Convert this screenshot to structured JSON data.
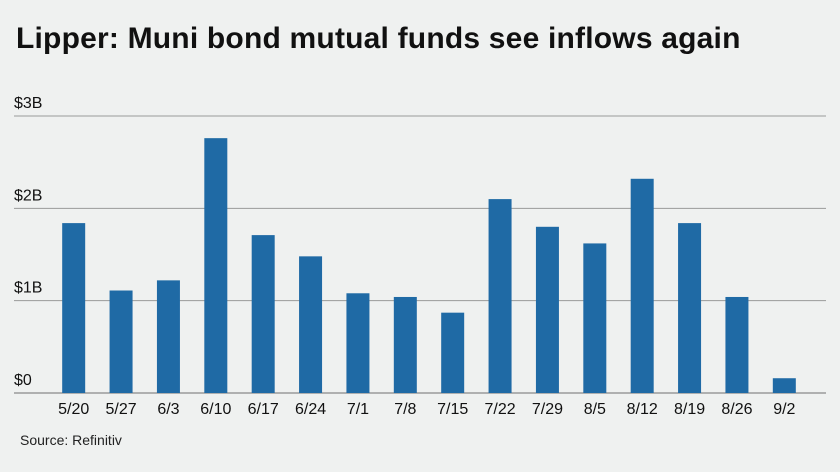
{
  "title": "Lipper: Muni bond mutual funds see inflows again",
  "source": "Source: Refinitiv",
  "chart_data": {
    "type": "bar",
    "title": "Lipper: Muni bond mutual funds see inflows again",
    "xlabel": "",
    "ylabel": "",
    "categories": [
      "5/20",
      "5/27",
      "6/3",
      "6/10",
      "6/17",
      "6/24",
      "7/1",
      "7/8",
      "7/15",
      "7/22",
      "7/29",
      "8/5",
      "8/12",
      "8/19",
      "8/26",
      "9/2"
    ],
    "values": [
      1.84,
      1.11,
      1.22,
      2.76,
      1.71,
      1.48,
      1.08,
      1.04,
      0.87,
      2.1,
      1.8,
      1.62,
      2.32,
      1.84,
      1.04,
      0.16
    ],
    "ylim": [
      0,
      3
    ],
    "yticks": [
      0,
      1,
      2,
      3
    ],
    "ytick_labels": [
      "$0",
      "$1B",
      "$2B",
      "$3B"
    ],
    "grid": true,
    "bar_color": "#1f6aa5",
    "grid_color": "#9a9a9a"
  }
}
